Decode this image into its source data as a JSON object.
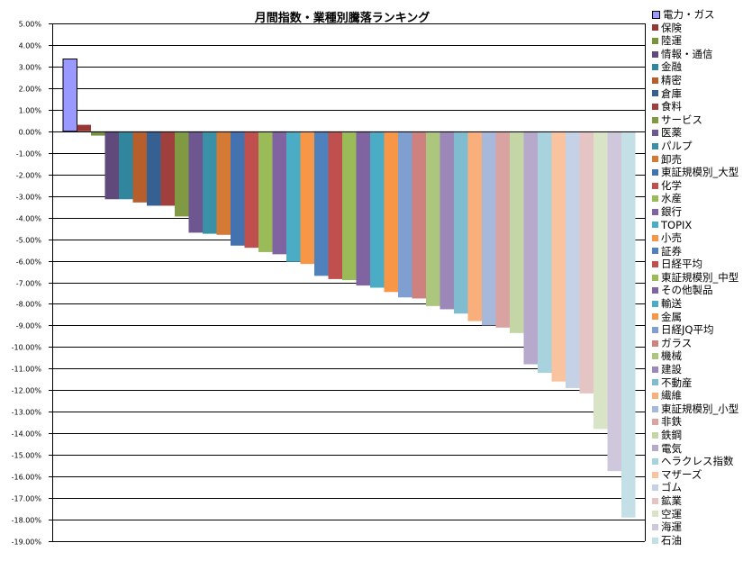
{
  "chart_data": {
    "type": "bar",
    "title": "月間指数・業種別騰落ランキング",
    "xlabel": "",
    "ylabel": "",
    "ylim": [
      -19,
      5
    ],
    "y_tick_step": 1,
    "y_tick_format": "percent_2dp",
    "grid": true,
    "legend_position": "right",
    "categories": [
      "電力・ガス",
      "保険",
      "陸運",
      "情報・通信",
      "金融",
      "精密",
      "倉庫",
      "食料",
      "サービス",
      "医薬",
      "パルプ",
      "卸売",
      "東証規模別_大型",
      "化学",
      "水産",
      "銀行",
      "TOPIX",
      "小売",
      "証券",
      "日経平均",
      "東証規模別_中型",
      "その他製品",
      "輸送",
      "金属",
      "日経JQ平均",
      "ガラス",
      "機械",
      "建設",
      "不動産",
      "繊維",
      "東証規模別_小型",
      "非鉄",
      "鉄鋼",
      "電気",
      "ヘラクレス指数",
      "マザーズ",
      "ゴム",
      "鉱業",
      "空運",
      "海運",
      "石油"
    ],
    "values": [
      3.35,
      0.3,
      -0.2,
      -3.15,
      -3.15,
      -3.3,
      -3.45,
      -3.45,
      -3.95,
      -4.7,
      -4.75,
      -4.8,
      -5.3,
      -5.4,
      -5.6,
      -5.7,
      -6.05,
      -6.15,
      -6.7,
      -6.85,
      -6.9,
      -7.15,
      -7.25,
      -7.45,
      -7.7,
      -7.75,
      -8.1,
      -8.25,
      -8.45,
      -8.8,
      -9.0,
      -9.1,
      -9.35,
      -10.8,
      -11.2,
      -11.6,
      -11.9,
      -12.15,
      -13.8,
      -15.75,
      -17.9
    ],
    "colors": [
      "#9999FF",
      "#953735",
      "#77933C",
      "#604A7B",
      "#31859C",
      "#B65F2C",
      "#376092",
      "#A0403E",
      "#809A44",
      "#6E5690",
      "#3A91A7",
      "#D47A35",
      "#4472B0",
      "#C0504D",
      "#9BBB59",
      "#8064A2",
      "#4BACC6",
      "#F79646",
      "#4F81BD",
      "#C0504D",
      "#9BBB59",
      "#8064A2",
      "#4BACC6",
      "#F79646",
      "#7F9FD0",
      "#CE817F",
      "#ADC67D",
      "#9B88B8",
      "#7FBCD0",
      "#F9AF7C",
      "#A6B9DB",
      "#D9A3A2",
      "#C4D6A5",
      "#B6A9CB",
      "#A7D2DE",
      "#FAC3A0",
      "#C5D2E6",
      "#E5C5C4",
      "#D9E4C6",
      "#CFC8DC",
      "#C4DFE6"
    ]
  }
}
